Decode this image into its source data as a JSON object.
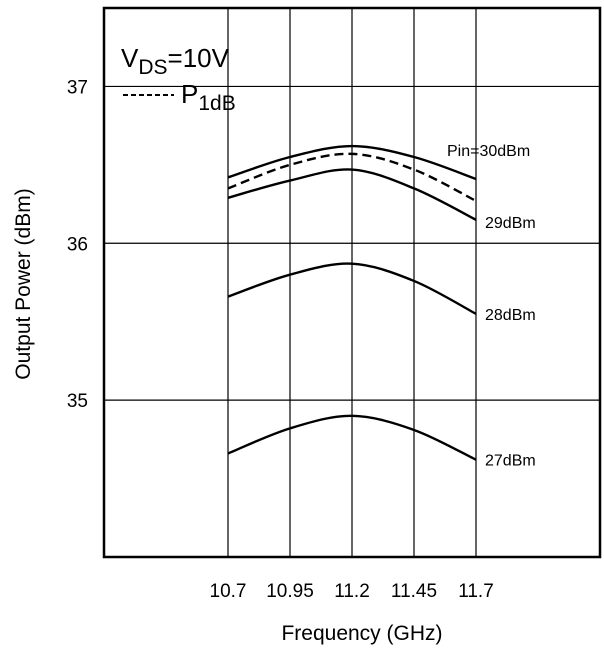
{
  "chart_data": {
    "type": "line",
    "title": "",
    "xlabel": "Frequency (GHz)",
    "ylabel": "Output Power (dBm)",
    "xlim": [
      10.2,
      12.2
    ],
    "ylim": [
      34,
      37.5
    ],
    "x_ticks": [
      "10.7",
      "10.95",
      "11.2",
      "11.45",
      "11.7"
    ],
    "y_ticks": [
      "35",
      "36",
      "37"
    ],
    "grid": true,
    "legend": {
      "placement": "top-left",
      "condition_prefix": "V",
      "condition_subscript": "DS",
      "condition_suffix": "=10V",
      "dash_sample": "-----",
      "p1db_prefix": "P",
      "p1db_subscript": "1dB"
    },
    "series": [
      {
        "name": "Pin=30dBm",
        "style": "solid",
        "x": [
          10.7,
          10.95,
          11.2,
          11.45,
          11.7
        ],
        "y": [
          36.42,
          36.55,
          36.62,
          36.55,
          36.41
        ]
      },
      {
        "name": "P1dB",
        "style": "dashed",
        "x": [
          10.7,
          10.95,
          11.2,
          11.45,
          11.7
        ],
        "y": [
          36.35,
          36.5,
          36.57,
          36.47,
          36.27
        ]
      },
      {
        "name": "29dBm",
        "style": "solid",
        "x": [
          10.7,
          10.95,
          11.2,
          11.45,
          11.7
        ],
        "y": [
          36.29,
          36.4,
          36.47,
          36.35,
          36.15
        ]
      },
      {
        "name": "28dBm",
        "style": "solid",
        "x": [
          10.7,
          10.95,
          11.2,
          11.45,
          11.7
        ],
        "y": [
          35.66,
          35.8,
          35.87,
          35.76,
          35.55
        ]
      },
      {
        "name": "27dBm",
        "style": "solid",
        "x": [
          10.7,
          10.95,
          11.2,
          11.45,
          11.7
        ],
        "y": [
          34.66,
          34.82,
          34.9,
          34.81,
          34.62
        ]
      }
    ],
    "annotations": [
      {
        "text": "Pin=30dBm",
        "for_series": "Pin=30dBm"
      },
      {
        "text": "29dBm",
        "for_series": "29dBm"
      },
      {
        "text": "28dBm",
        "for_series": "28dBm"
      },
      {
        "text": "27dBm",
        "for_series": "27dBm"
      }
    ]
  }
}
